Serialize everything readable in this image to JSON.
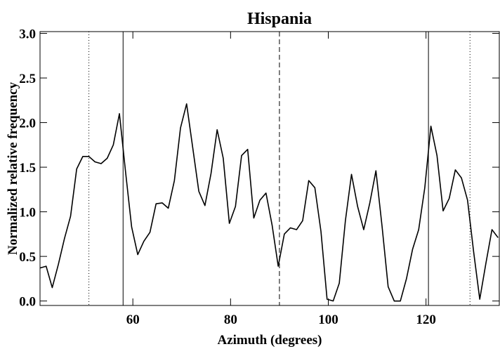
{
  "chart_data": {
    "type": "line",
    "title": "Hispania",
    "x_label": "Azimuth (degrees)",
    "y_label": "Normalized relative frequency",
    "x": [
      41,
      42.25,
      43.5,
      44.75,
      46,
      47.25,
      48.5,
      49.75,
      51,
      52.25,
      53.5,
      54.75,
      56,
      57.25,
      58.5,
      59.75,
      61,
      62.25,
      63.5,
      64.75,
      66,
      67.25,
      68.5,
      69.75,
      71,
      72.25,
      73.5,
      74.75,
      76,
      77.25,
      78.5,
      79.75,
      81,
      82.25,
      83.5,
      84.75,
      86,
      87.25,
      88.5,
      89.75,
      91,
      92.25,
      93.5,
      94.75,
      96,
      97.25,
      98.5,
      99.75,
      101,
      102.25,
      103.5,
      104.75,
      106,
      107.25,
      108.5,
      109.75,
      111,
      112.25,
      113.5,
      114.75,
      116,
      117.25,
      118.5,
      119.75,
      121,
      122.25,
      123.5,
      124.75,
      126,
      127.25,
      128.5,
      129.75,
      131,
      132.25,
      133.5,
      134.75
    ],
    "series": [
      {
        "name": "Hispania",
        "color": "#000000",
        "values": [
          0.37,
          0.39,
          0.15,
          0.41,
          0.7,
          0.95,
          1.48,
          1.62,
          1.62,
          1.56,
          1.54,
          1.6,
          1.75,
          2.1,
          1.45,
          0.83,
          0.52,
          0.67,
          0.77,
          1.09,
          1.1,
          1.04,
          1.35,
          1.94,
          2.21,
          1.72,
          1.23,
          1.07,
          1.43,
          1.92,
          1.6,
          0.87,
          1.06,
          1.63,
          1.7,
          0.93,
          1.13,
          1.21,
          0.85,
          0.39,
          0.75,
          0.82,
          0.8,
          0.9,
          1.35,
          1.27,
          0.78,
          0.02,
          0.0,
          0.2,
          0.9,
          1.42,
          1.06,
          0.8,
          1.1,
          1.46,
          0.84,
          0.16,
          0.0,
          0.0,
          0.25,
          0.58,
          0.8,
          1.27,
          1.96,
          1.63,
          1.01,
          1.15,
          1.47,
          1.38,
          1.13,
          0.55,
          0.02,
          0.42,
          0.8,
          0.71
        ]
      }
    ],
    "vlines": [
      {
        "x": 51,
        "style": "dotted"
      },
      {
        "x": 58,
        "style": "solid"
      },
      {
        "x": 90,
        "style": "dashed"
      },
      {
        "x": 120.5,
        "style": "solid"
      },
      {
        "x": 129,
        "style": "dotted"
      }
    ],
    "xlim": [
      41,
      135
    ],
    "ylim": [
      -0.05,
      3.02
    ],
    "xticks": [
      60,
      80,
      100,
      120
    ],
    "yticks": [
      {
        "value": 0,
        "label": "0.0"
      },
      {
        "value": 0.5,
        "label": "0.5"
      },
      {
        "value": 1,
        "label": "1.0"
      },
      {
        "value": 1.5,
        "label": "1.5"
      },
      {
        "value": 2,
        "label": "2.0"
      },
      {
        "value": 2.5,
        "label": "2.5"
      },
      {
        "value": 3,
        "label": "3.0"
      }
    ],
    "grid": false
  }
}
